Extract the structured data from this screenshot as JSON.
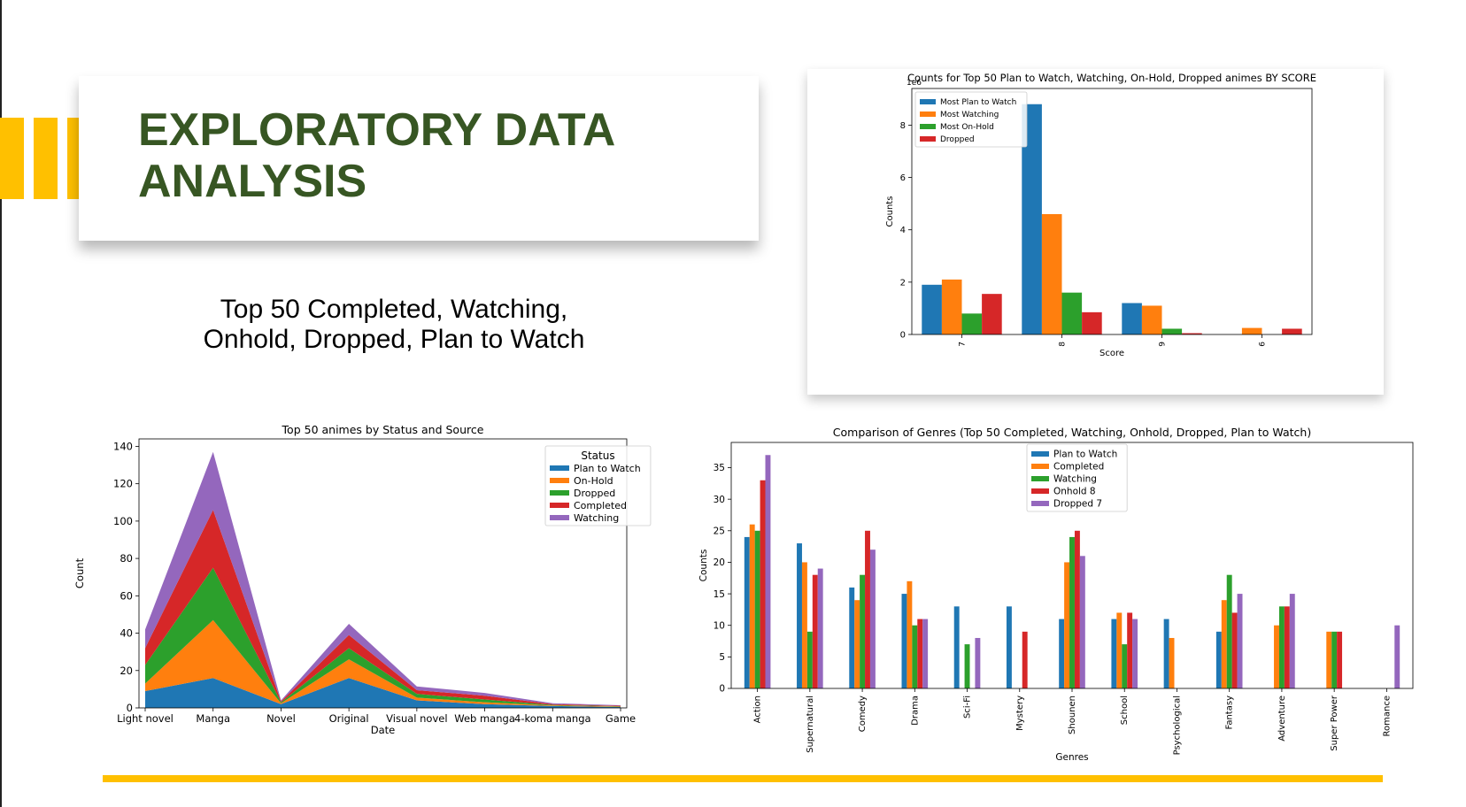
{
  "slide": {
    "title": "EXPLORATORY DATA ANALYSIS",
    "subtitle": "Top 50 Completed, Watching, Onhold, Dropped, Plan to Watch",
    "colors": {
      "title": "#375623",
      "accent": "#FFC000"
    }
  },
  "chart_data": [
    {
      "id": "score",
      "type": "bar",
      "title": "Counts for Top 50 Plan to Watch, Watching, On-Hold, Dropped animes BY SCORE",
      "xlabel": "Score",
      "ylabel": "Counts",
      "offset_label": "1e6",
      "categories": [
        "7",
        "8",
        "9",
        "6"
      ],
      "ylim": [
        0,
        9.4
      ],
      "yticks": [
        0,
        2,
        4,
        6,
        8
      ],
      "legend_position": "upper-left",
      "series": [
        {
          "name": "Most Plan to Watch",
          "color": "#1f77b4",
          "values": [
            1.9,
            8.8,
            1.2,
            0
          ]
        },
        {
          "name": "Most Watching",
          "color": "#ff7f0e",
          "values": [
            2.1,
            4.6,
            1.1,
            0.25
          ]
        },
        {
          "name": "Most On-Hold",
          "color": "#2ca02c",
          "values": [
            0.8,
            1.6,
            0.22,
            0
          ]
        },
        {
          "name": "Dropped",
          "color": "#d62728",
          "values": [
            1.55,
            0.85,
            0.05,
            0.22
          ]
        }
      ]
    },
    {
      "id": "status",
      "type": "area",
      "title": "Top 50 animes by Status and Source",
      "xlabel": "Date",
      "ylabel": "Count",
      "categories": [
        "Light novel",
        "Manga",
        "Novel",
        "Original",
        "Visual novel",
        "Web manga",
        "4-koma manga",
        "Game"
      ],
      "ylim": [
        0,
        144
      ],
      "yticks": [
        0,
        20,
        40,
        60,
        80,
        100,
        120,
        140
      ],
      "legend_title": "Status",
      "legend_position": "upper-right",
      "series": [
        {
          "name": "Plan to Watch",
          "color": "#1f77b4",
          "values": [
            9,
            16,
            2,
            16,
            4,
            2,
            1,
            0.5
          ]
        },
        {
          "name": "On-Hold",
          "color": "#ff7f0e",
          "values": [
            4,
            31,
            0.5,
            10,
            1.5,
            1,
            0.3,
            0.2
          ]
        },
        {
          "name": "Dropped",
          "color": "#2ca02c",
          "values": [
            10,
            28,
            0.5,
            6,
            2,
            1.5,
            0.3,
            0.2
          ]
        },
        {
          "name": "Completed",
          "color": "#d62728",
          "values": [
            9,
            31,
            0.5,
            7,
            2,
            2,
            0.4,
            0.2
          ]
        },
        {
          "name": "Watching",
          "color": "#9467bd",
          "values": [
            10,
            31,
            0.5,
            6,
            2,
            1.5,
            0.5,
            0.3
          ]
        }
      ]
    },
    {
      "id": "genres",
      "type": "bar",
      "title": "Comparison of Genres (Top 50 Completed, Watching, Onhold, Dropped, Plan to Watch)",
      "xlabel": "Genres",
      "ylabel": "Counts",
      "categories": [
        "Action",
        "Supernatural",
        "Comedy",
        "Drama",
        "Sci-Fi",
        "Mystery",
        "Shounen",
        "School",
        "Psychological",
        "Fantasy",
        "Adventure",
        "Super Power",
        "Romance"
      ],
      "ylim": [
        0,
        39
      ],
      "yticks": [
        0,
        5,
        10,
        15,
        20,
        25,
        30,
        35
      ],
      "legend_position": "upper-center",
      "series": [
        {
          "name": "Plan to Watch",
          "color": "#1f77b4",
          "values": [
            24,
            23,
            16,
            15,
            13,
            13,
            11,
            11,
            11,
            9,
            0,
            0,
            0
          ]
        },
        {
          "name": "Completed",
          "color": "#ff7f0e",
          "values": [
            26,
            20,
            14,
            17,
            0,
            0,
            20,
            12,
            8,
            14,
            10,
            9,
            0
          ]
        },
        {
          "name": "Watching",
          "color": "#2ca02c",
          "values": [
            25,
            9,
            18,
            10,
            7,
            0,
            24,
            7,
            0,
            18,
            13,
            9,
            0
          ]
        },
        {
          "name": "Onhold 8",
          "color": "#d62728",
          "values": [
            33,
            18,
            25,
            11,
            0,
            9,
            25,
            12,
            0,
            12,
            13,
            9,
            0
          ]
        },
        {
          "name": "Dropped 7",
          "color": "#9467bd",
          "values": [
            37,
            19,
            22,
            11,
            8,
            0,
            21,
            11,
            0,
            15,
            15,
            0,
            10
          ]
        }
      ]
    }
  ]
}
